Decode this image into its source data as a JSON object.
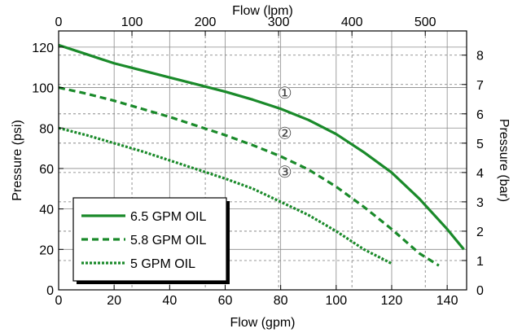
{
  "chart_data": {
    "type": "line",
    "title": "",
    "xlabel": "Flow (gpm)",
    "ylabel": "Pressure (psi)",
    "x2label": "Flow (lpm)",
    "y2label": "Pressure (bar)",
    "xlim": [
      0,
      147
    ],
    "ylim": [
      0,
      128
    ],
    "x2lim": [
      0,
      556.4
    ],
    "y2lim": [
      0,
      8.825
    ],
    "xticks": [
      0,
      20,
      40,
      60,
      80,
      100,
      120,
      140
    ],
    "yticks": [
      0,
      20,
      40,
      60,
      80,
      100,
      120
    ],
    "x2ticks": [
      0,
      100,
      200,
      300,
      400,
      500
    ],
    "y2ticks": [
      0,
      1,
      2,
      3,
      4,
      5,
      6,
      7,
      8
    ],
    "grid": true,
    "legend_position": "bottom-left",
    "series": [
      {
        "name": "6.5 GPM OIL",
        "style": "solid",
        "color": "#1a8a2a",
        "x": [
          0,
          10,
          20,
          30,
          40,
          50,
          60,
          70,
          80,
          90,
          100,
          110,
          120,
          130,
          140,
          146
        ],
        "y": [
          121,
          116.5,
          112,
          108.5,
          105,
          101.5,
          98,
          94,
          89.5,
          84,
          77,
          68,
          58,
          45,
          30,
          20
        ]
      },
      {
        "name": "5.8 GPM OIL",
        "style": "dashed",
        "color": "#1a8a2a",
        "x": [
          0,
          10,
          20,
          30,
          40,
          50,
          60,
          70,
          80,
          90,
          100,
          110,
          120,
          130,
          137
        ],
        "y": [
          100,
          97,
          93.5,
          89.5,
          85.5,
          81,
          76.5,
          71.5,
          66,
          59.5,
          51,
          41,
          30,
          18,
          12
        ]
      },
      {
        "name": "5 GPM OIL",
        "style": "dotted",
        "color": "#1a8a2a",
        "x": [
          0,
          10,
          20,
          30,
          40,
          50,
          60,
          70,
          80,
          90,
          100,
          110,
          120
        ],
        "y": [
          80,
          76.5,
          72.5,
          68.5,
          64,
          59.5,
          55,
          50,
          43.5,
          37,
          29,
          20,
          13
        ]
      }
    ],
    "annotations": [
      {
        "text": "①",
        "x": 81.5,
        "y": 97
      },
      {
        "text": "②",
        "x": 81.5,
        "y": 77
      },
      {
        "text": "③",
        "x": 81.5,
        "y": 58
      }
    ]
  }
}
